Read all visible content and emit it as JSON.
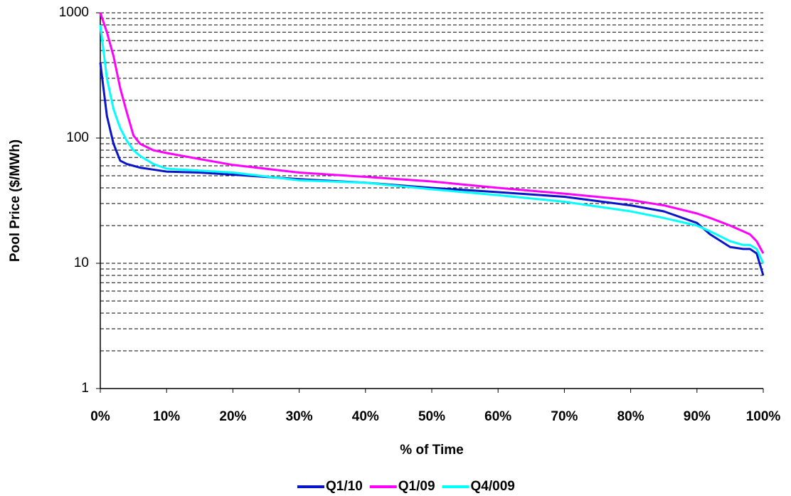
{
  "chart_data": {
    "type": "line",
    "y_label": "Pool Price ($/MWh)",
    "x_label": "% of Time",
    "log_y": true,
    "grid": true,
    "legend": "bottom",
    "xlim": [
      0,
      100
    ],
    "ylim": [
      1,
      1000
    ],
    "xticks": [
      {
        "value": 0,
        "label": "0%"
      },
      {
        "value": 10,
        "label": "10%"
      },
      {
        "value": 20,
        "label": "20%"
      },
      {
        "value": 30,
        "label": "30%"
      },
      {
        "value": 40,
        "label": "40%"
      },
      {
        "value": 50,
        "label": "50%"
      },
      {
        "value": 60,
        "label": "60%"
      },
      {
        "value": 70,
        "label": "70%"
      },
      {
        "value": 80,
        "label": "80%"
      },
      {
        "value": 90,
        "label": "90%"
      },
      {
        "value": 100,
        "label": "100%"
      }
    ],
    "yticks": [
      1,
      10,
      100,
      1000
    ],
    "ygrid": [
      2,
      3,
      4,
      5,
      6,
      7,
      8,
      9,
      10,
      20,
      30,
      40,
      50,
      60,
      70,
      80,
      90,
      100,
      200,
      300,
      400,
      500,
      600,
      700,
      800,
      900,
      1000
    ],
    "x": [
      0,
      1,
      2,
      3,
      4,
      5,
      6,
      8,
      10,
      15,
      20,
      30,
      40,
      50,
      60,
      70,
      80,
      85,
      90,
      92,
      95,
      97,
      98,
      99,
      100
    ],
    "series": [
      {
        "name": "Q1/10",
        "color": "#0a14c8",
        "values": [
          400,
          150,
          90,
          66,
          62,
          60,
          58,
          56,
          54,
          53,
          51,
          47,
          44,
          40,
          37,
          34,
          29,
          26,
          21,
          17,
          13.5,
          13,
          13,
          12,
          8
        ]
      },
      {
        "name": "Q1/09",
        "color": "#ff00ff",
        "values": [
          1000,
          700,
          450,
          250,
          160,
          105,
          90,
          80,
          76,
          68,
          61,
          53,
          49,
          45,
          40,
          36,
          32,
          29,
          25,
          23,
          20,
          18,
          17,
          15,
          12
        ]
      },
      {
        "name": "Q4/009",
        "color": "#00ffff",
        "values": [
          800,
          300,
          170,
          120,
          95,
          80,
          72,
          62,
          57,
          55,
          53,
          46,
          44,
          39,
          35,
          31,
          26,
          23,
          20,
          18,
          15,
          14,
          14,
          13,
          10
        ]
      }
    ]
  }
}
